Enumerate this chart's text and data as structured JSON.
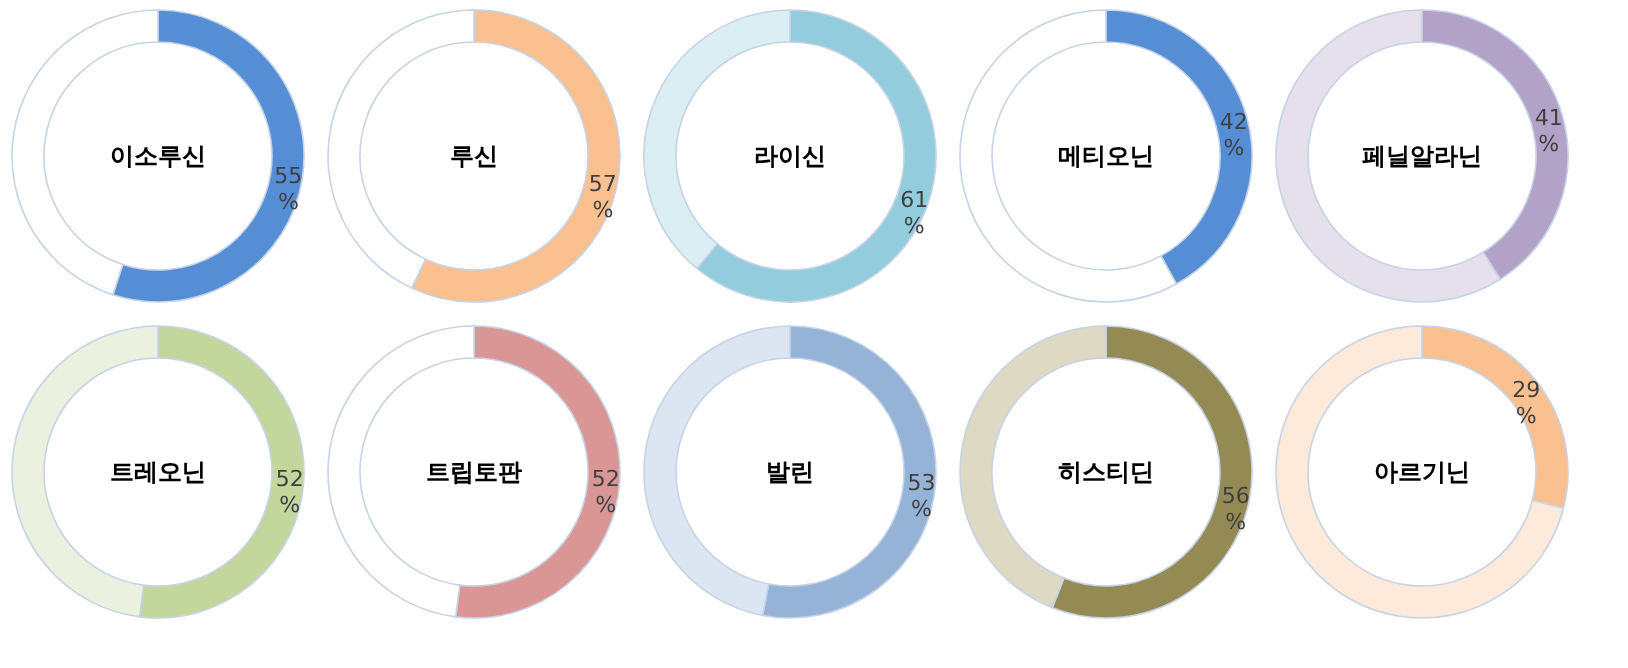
{
  "chart_data": [
    {
      "type": "donut",
      "title": "이소루신",
      "categories": [
        null,
        null
      ],
      "values": [
        55,
        45
      ],
      "colors": [
        "#558ed5",
        "#ffffff"
      ],
      "value_labels": [
        "55 %",
        null
      ]
    },
    {
      "type": "donut",
      "title": "루신",
      "categories": [
        null,
        null
      ],
      "values": [
        57,
        43
      ],
      "colors": [
        "#fac090",
        "#ffffff"
      ],
      "value_labels": [
        "57 %",
        null
      ]
    },
    {
      "type": "donut",
      "title": "라이신",
      "categories": [
        null,
        null
      ],
      "values": [
        61,
        39
      ],
      "colors": [
        "#93cddd",
        "#dbeef4"
      ],
      "value_labels": [
        "61 %",
        null
      ]
    },
    {
      "type": "donut",
      "title": "메티오닌",
      "categories": [
        null,
        null
      ],
      "values": [
        42,
        58
      ],
      "colors": [
        "#558ed5",
        "#ffffff"
      ],
      "value_labels": [
        "42 %",
        null
      ]
    },
    {
      "type": "donut",
      "title": "페닐알라닌",
      "categories": [
        null,
        null
      ],
      "values": [
        41,
        59
      ],
      "colors": [
        "#b3a2c7",
        "#e6e0ec"
      ],
      "value_labels": [
        "41 %",
        null
      ]
    },
    {
      "type": "donut",
      "title": "트레오닌",
      "categories": [
        null,
        null
      ],
      "values": [
        52,
        48
      ],
      "colors": [
        "#c3d69b",
        "#ebf1de"
      ],
      "value_labels": [
        "52 %",
        null
      ]
    },
    {
      "type": "donut",
      "title": "트립토판",
      "categories": [
        null,
        null
      ],
      "values": [
        52,
        48
      ],
      "colors": [
        "#d99694",
        "#ffffff"
      ],
      "value_labels": [
        "52 %",
        null
      ]
    },
    {
      "type": "donut",
      "title": "발린",
      "categories": [
        null,
        null
      ],
      "values": [
        53,
        47
      ],
      "colors": [
        "#95b3d7",
        "#dce6f2"
      ],
      "value_labels": [
        "53 %",
        null
      ]
    },
    {
      "type": "donut",
      "title": "히스티딘",
      "categories": [
        null,
        null
      ],
      "values": [
        56,
        44
      ],
      "colors": [
        "#948a54",
        "#ddd9c3"
      ],
      "value_labels": [
        "56 %",
        null
      ]
    },
    {
      "type": "donut",
      "title": "아르기닌",
      "categories": [
        null,
        null
      ],
      "values": [
        29,
        71
      ],
      "colors": [
        "#fac090",
        "#fdeada"
      ],
      "value_labels": [
        "29 %",
        null
      ]
    }
  ]
}
